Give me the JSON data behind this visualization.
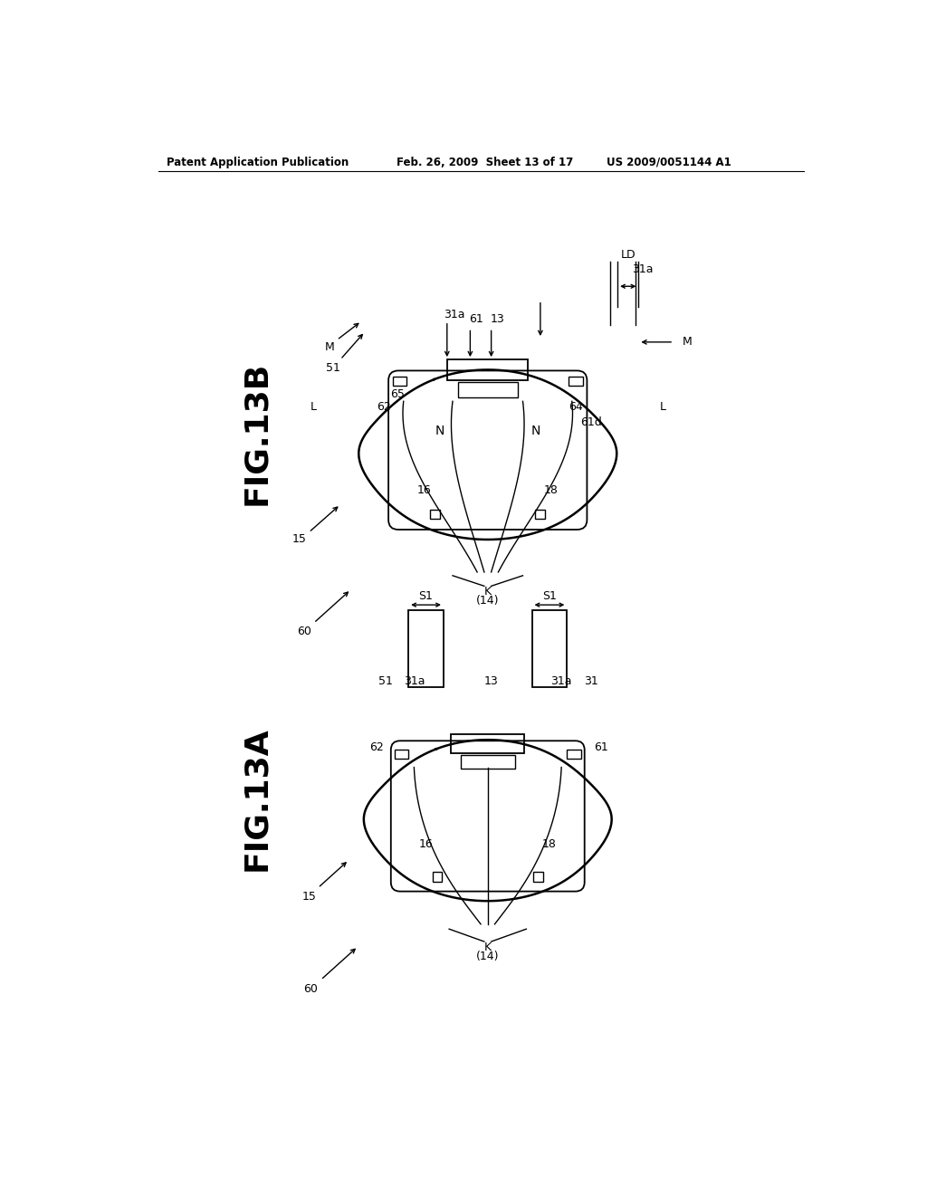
{
  "header_left": "Patent Application Publication",
  "header_mid": "Feb. 26, 2009  Sheet 13 of 17",
  "header_right": "US 2009/0051144 A1",
  "bg_color": "#ffffff",
  "line_color": "#000000"
}
